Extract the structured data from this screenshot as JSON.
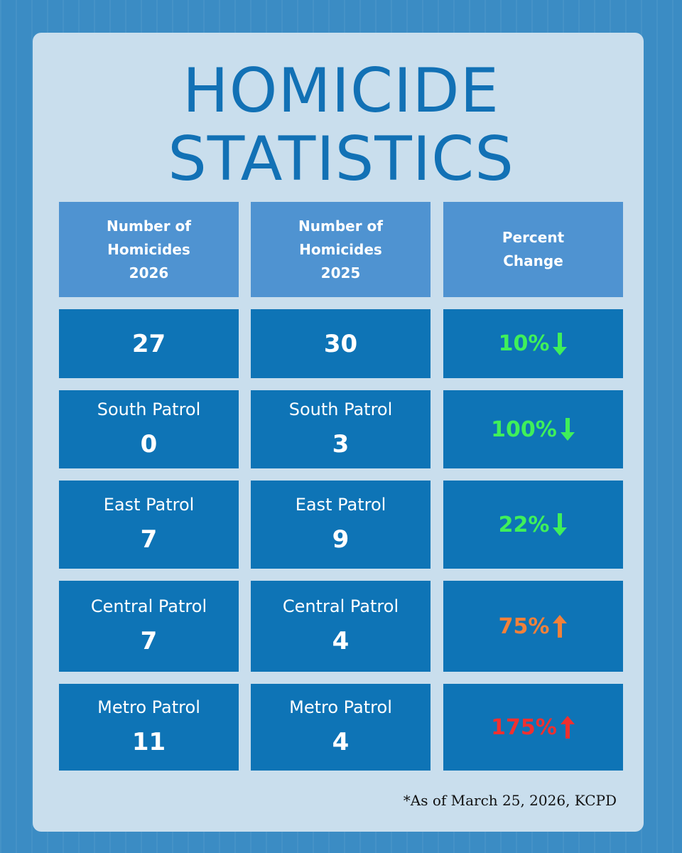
{
  "title_line1": "HOMICIDE",
  "title_line2": "STATISTICS",
  "headers": {
    "col1": [
      "Number of",
      "Homicides",
      "2026"
    ],
    "col2": [
      "Number of",
      "Homicides",
      "2025"
    ],
    "col3": [
      "Percent",
      "Change"
    ]
  },
  "rows": [
    {
      "label_2026": "",
      "value_2026": "27",
      "label_2025": "",
      "value_2025": "30",
      "percent": "10%",
      "direction": "down",
      "color": "#3ff05a"
    },
    {
      "label_2026": "South Patrol",
      "value_2026": "0",
      "label_2025": "South Patrol",
      "value_2025": "3",
      "percent": "100%",
      "direction": "down",
      "color": "#3ff05a"
    },
    {
      "label_2026": "East Patrol",
      "value_2026": "7",
      "label_2025": "East Patrol",
      "value_2025": "9",
      "percent": "22%",
      "direction": "down",
      "color": "#3ff05a"
    },
    {
      "label_2026": "Central Patrol",
      "value_2026": "7",
      "label_2025": "Central Patrol",
      "value_2025": "4",
      "percent": "75%",
      "direction": "up",
      "color": "#f2813a"
    },
    {
      "label_2026": "Metro Patrol",
      "value_2026": "11",
      "label_2025": "Metro Patrol",
      "value_2025": "4",
      "percent": "175%",
      "direction": "up",
      "color": "#f0302f"
    }
  ],
  "footnote": "*As of March 25, 2026, KCPD"
}
